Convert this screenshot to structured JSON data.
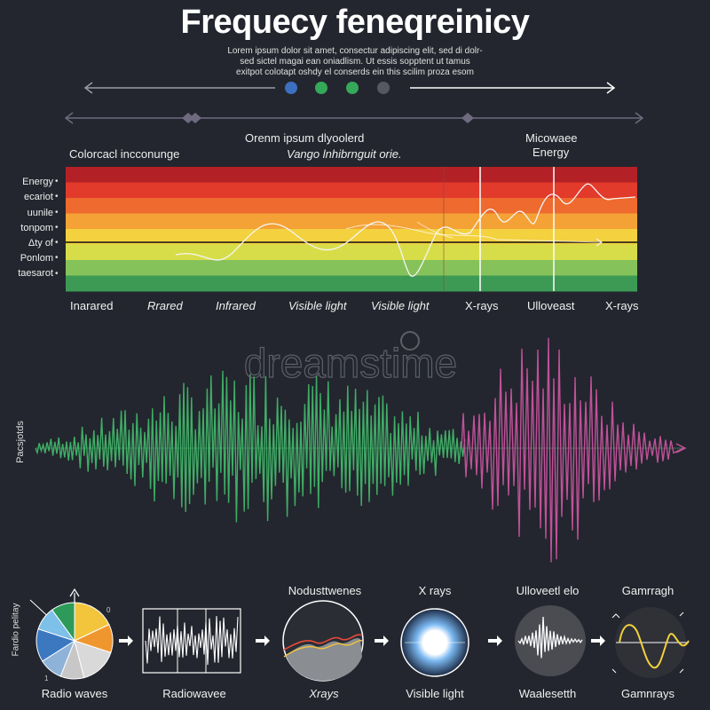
{
  "header": {
    "title": "Frequecy feneqreinicy",
    "subtitle_lines": [
      "Lorem ipsum dolor sit amet, consectur adipiscing elit, sed di dolr-",
      "sed sictel magai ean oniadlism. Ut essis sopptent ut tamus",
      "exitpot colotapt oshdy el conserds ein this scilim proza esom"
    ]
  },
  "spectrum": {
    "left_heading": "Colorcacl incconunge",
    "center_heading_1": "Orenm ipsum dlyoolerd",
    "center_heading_2": "Vango lnhibrnguit orie.",
    "right_heading_1": "Micowaee",
    "right_heading_2": "Energy",
    "band_labels": [
      "Energy",
      "ecariot",
      "uunile",
      "tonpom",
      "Δty of",
      "Ponlom",
      "taesarot"
    ],
    "bottom_labels": [
      "Inarared",
      "Rrared",
      "Infrared",
      "Visible light",
      "Visible light",
      "X-rays",
      "Ulloveast",
      "X-rays"
    ],
    "band_colors": [
      "#b32126",
      "#e23a2b",
      "#ee6a2e",
      "#f4a236",
      "#f3d13f",
      "#d7dd49",
      "#86c25a",
      "#3c9a55"
    ]
  },
  "wave": {
    "side_label": "Pacsjotds",
    "watermark": "dreamstime",
    "colors": [
      "#3fae66",
      "#c0519a"
    ]
  },
  "stages": {
    "left_side_label": "Fardio pelitay",
    "items": [
      {
        "top_label": "",
        "bottom_label": "Radio waves"
      },
      {
        "top_label": "",
        "bottom_label": "Radiowavee"
      },
      {
        "top_label": "Nodusttwenes",
        "bottom_label": "Xrays"
      },
      {
        "top_label": "X rays",
        "bottom_label": "Visible light"
      },
      {
        "top_label": "Ulloveetl elo",
        "bottom_label": "Waalesetth"
      },
      {
        "top_label": "Gamrragh",
        "bottom_label": "Gamnrays"
      }
    ],
    "pie_colors": [
      "#f2c53d",
      "#f0962e",
      "#d9d9d9",
      "#c7c7c7",
      "#8fb3d8",
      "#3b78c0",
      "#7dc0e8",
      "#2d9a5a"
    ]
  }
}
